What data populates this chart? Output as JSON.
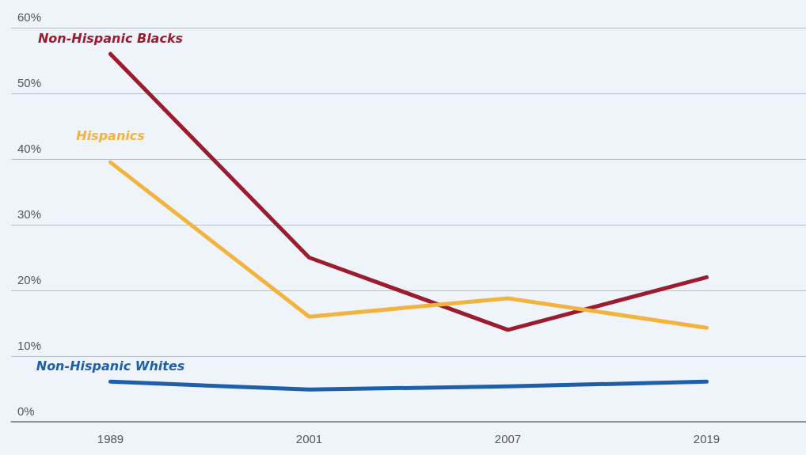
{
  "chart_data": {
    "type": "line",
    "categories": [
      "1989",
      "2001",
      "2007",
      "2019"
    ],
    "series": [
      {
        "name": "Non-Hispanic Blacks",
        "color": "#9b1c2e",
        "values": [
          56,
          25,
          14,
          22
        ]
      },
      {
        "name": "Hispanics",
        "color": "#f2b43f",
        "values": [
          39.5,
          16,
          18.8,
          14.3
        ]
      },
      {
        "name": "Non-Hispanic Whites",
        "color": "#1f5fa8",
        "values": [
          6.1,
          4.9,
          5.4,
          6.1
        ]
      }
    ],
    "ylim": [
      0,
      60
    ],
    "yticks": [
      {
        "value": 0,
        "label": "0%"
      },
      {
        "value": 10,
        "label": "10%"
      },
      {
        "value": 20,
        "label": "20%"
      },
      {
        "value": 30,
        "label": "30%"
      },
      {
        "value": 40,
        "label": "40%"
      },
      {
        "value": 50,
        "label": "50%"
      },
      {
        "value": 60,
        "label": "60%"
      }
    ],
    "grid": "y",
    "legend": false,
    "marker": "none",
    "line_style": "solid"
  }
}
